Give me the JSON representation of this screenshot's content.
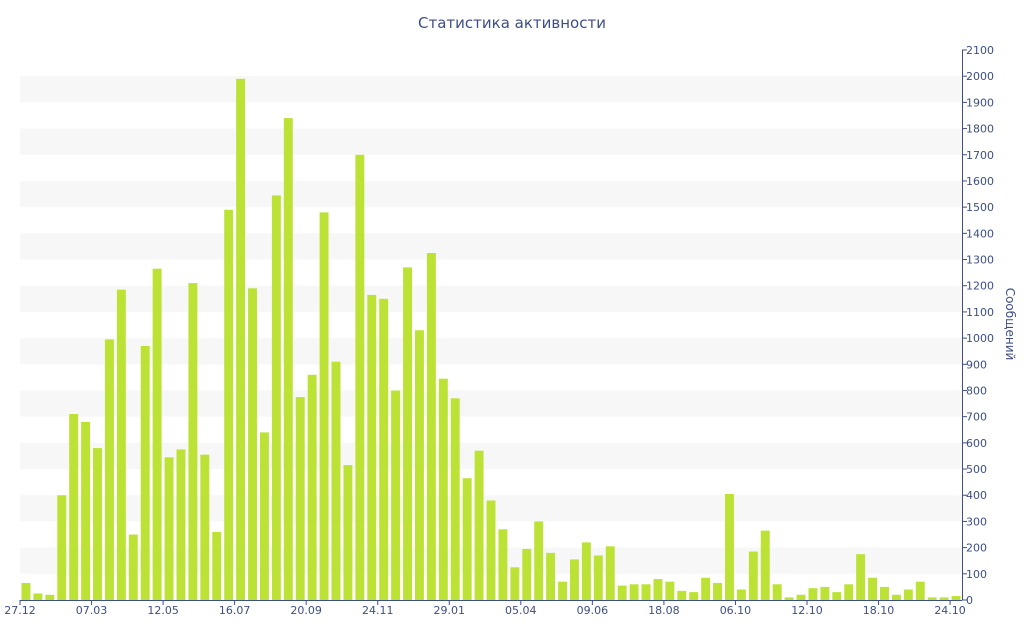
{
  "chart_data": {
    "type": "bar",
    "title": "Статистика активности",
    "ylabel": "Сообщений",
    "xlabel": "",
    "ylim": [
      0,
      2100
    ],
    "y_ticks": [
      0,
      100,
      200,
      300,
      400,
      500,
      600,
      700,
      800,
      900,
      1000,
      1100,
      1200,
      1300,
      1400,
      1500,
      1600,
      1700,
      1800,
      1900,
      2000,
      2100
    ],
    "x_tick_labels": [
      "27.12",
      "07.03",
      "12.05",
      "16.07",
      "20.09",
      "24.11",
      "29.01",
      "05.04",
      "09.06",
      "18.08",
      "06.10",
      "12.10",
      "18.10",
      "24.10"
    ],
    "x_tick_positions": [
      0,
      6,
      12,
      18,
      24,
      30,
      36,
      42,
      48,
      54,
      60,
      66,
      72,
      78
    ],
    "bar_color": "#bde236",
    "band_color": "#f7f7f7",
    "axis_color": "#3e4e86",
    "legend": "none",
    "grid": "alternating horizontal bands",
    "values": [
      65,
      25,
      20,
      400,
      710,
      680,
      580,
      995,
      1185,
      250,
      970,
      1265,
      545,
      575,
      1210,
      555,
      260,
      1490,
      1990,
      1190,
      640,
      1545,
      1840,
      775,
      860,
      1480,
      910,
      515,
      1700,
      1165,
      1150,
      800,
      1270,
      1030,
      1325,
      845,
      770,
      465,
      570,
      380,
      270,
      125,
      195,
      300,
      180,
      70,
      155,
      220,
      170,
      205,
      55,
      60,
      60,
      80,
      70,
      35,
      30,
      85,
      65,
      405,
      40,
      185,
      265,
      60,
      10,
      20,
      45,
      50,
      30,
      60,
      175,
      85,
      50,
      20,
      40,
      70,
      10,
      10,
      15
    ]
  }
}
